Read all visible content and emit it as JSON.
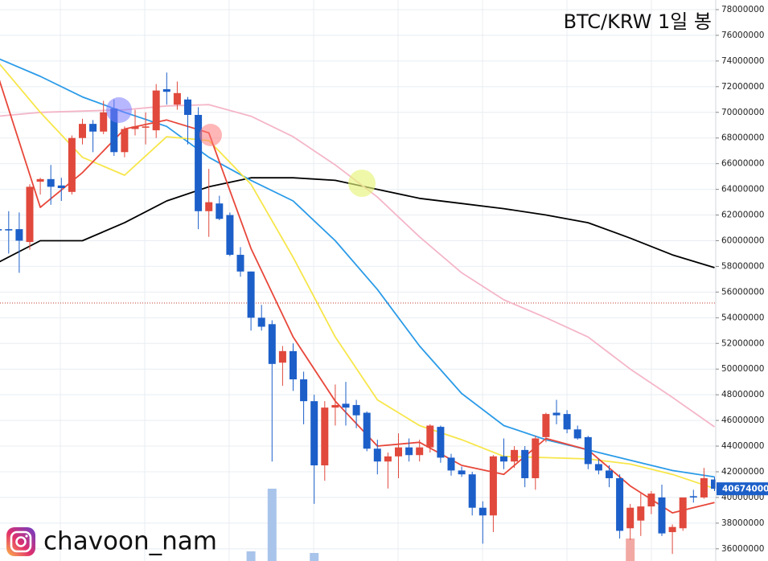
{
  "chart_data": {
    "type": "candlestick",
    "title": "BTC/KRW 1일 봉",
    "watermark": "chavoon_nam",
    "ylim": [
      35050000,
      78750000
    ],
    "yticks": [
      36000000,
      38000000,
      40000000,
      42000000,
      44000000,
      46000000,
      48000000,
      50000000,
      52000000,
      54000000,
      56000000,
      58000000,
      60000000,
      62000000,
      64000000,
      66000000,
      68000000,
      70000000,
      72000000,
      74000000,
      76000000,
      78000000
    ],
    "grid": true,
    "up_color": "#e0493c",
    "down_color": "#1c5fc9",
    "current_price": 40674000,
    "reference_line": 55150000,
    "open": [
      60900000.0,
      60900000.0,
      60900000.0,
      59900000.0,
      64600000.0,
      64800000.0,
      64300000.0,
      63800000.0,
      68000000.0,
      69100000.0,
      68500000.0,
      70300000.0,
      66900000.0,
      68700000.0,
      68800000.0,
      68600000.0,
      71800000.0,
      70600000.0,
      71000000.0,
      69800000.0,
      62300000.0,
      62900000.0,
      62000000.0,
      58900000.0,
      57600000.0,
      54000000.0,
      53500000.0,
      50500000.0,
      51400000.0,
      49200000.0,
      47500000.0,
      42500000.0,
      47000000.0,
      47300000.0,
      47200000.0,
      46600000.0,
      43800000.0,
      42800000.0,
      43200000.0,
      43900000.0,
      43300000.0,
      43900000.0,
      45500000.0,
      43100000.0,
      42100000.0,
      41800000.0,
      39200000.0,
      38600000.0,
      43200000.0,
      42800000.0,
      43700000.0,
      41500000.0,
      44700000.0,
      46600000.0,
      46500000.0,
      45300000.0,
      44700000.0,
      42600000.0,
      42100000.0,
      41500000.0,
      37600000.0,
      38200000.0,
      39300000.0,
      40000000.0,
      37300000.0,
      37600000.0,
      40100000.0,
      40000000.0,
      41400000.0
    ],
    "high": [
      62000000.0,
      62300000.0,
      62200000.0,
      64400000.0,
      64900000.0,
      65900000.0,
      64900000.0,
      68200000.0,
      69500000.0,
      69400000.0,
      70900000.0,
      71000000.0,
      68900000.0,
      70200000.0,
      70000000.0,
      72200000.0,
      73100000.0,
      72400000.0,
      71200000.0,
      70400000.0,
      65600000.0,
      63500000.0,
      62200000.0,
      59500000.0,
      57600000.0,
      55000000.0,
      53800000.0,
      51800000.0,
      52000000.0,
      49800000.0,
      48000000.0,
      47500000.0,
      48800000.0,
      49000000.0,
      47600000.0,
      46700000.0,
      44500000.0,
      43500000.0,
      45000000.0,
      44600000.0,
      44500000.0,
      45700000.0,
      45600000.0,
      43400000.0,
      42400000.0,
      42000000.0,
      39700000.0,
      43300000.0,
      44600000.0,
      44000000.0,
      44000000.0,
      44800000.0,
      46600000.0,
      47600000.0,
      46800000.0,
      45600000.0,
      44800000.0,
      43000000.0,
      42500000.0,
      41800000.0,
      39500000.0,
      40300000.0,
      40500000.0,
      41000000.0,
      37900000.0,
      40000000.0,
      40600000.0,
      42300000.0,
      41600000.0
    ],
    "low": [
      59000000.0,
      59000000.0,
      57500000.0,
      59300000.0,
      63600000.0,
      62800000.0,
      63100000.0,
      63600000.0,
      67500000.0,
      66900000.0,
      68300000.0,
      66600000.0,
      66500000.0,
      68200000.0,
      67500000.0,
      68000000.0,
      70600000.0,
      70200000.0,
      67500000.0,
      60900000.0,
      60300000.0,
      61600000.0,
      58800000.0,
      57200000.0,
      53000000.0,
      53000000.0,
      42800000.0,
      48700000.0,
      48300000.0,
      45700000.0,
      39500000.0,
      41300000.0,
      45600000.0,
      45600000.0,
      45400000.0,
      43600000.0,
      41800000.0,
      40700000.0,
      41500000.0,
      42800000.0,
      42800000.0,
      43500000.0,
      42700000.0,
      41700000.0,
      41600000.0,
      38600000.0,
      36400000.0,
      37300000.0,
      42200000.0,
      42300000.0,
      40800000.0,
      40600000.0,
      44300000.0,
      45700000.0,
      45000000.0,
      44500000.0,
      42200000.0,
      41800000.0,
      40800000.0,
      36800000.0,
      36700000.0,
      37000000.0,
      38700000.0,
      37000000.0,
      35600000.0,
      37400000.0,
      39600000.0,
      39900000.0,
      40500000.0
    ],
    "close": [
      60800000.0,
      60800000.0,
      60000000.0,
      64200000.0,
      64800000.0,
      64200000.0,
      64100000.0,
      68000000.0,
      69100000.0,
      68500000.0,
      70000000.0,
      66900000.0,
      68700000.0,
      68900000.0,
      68900000.0,
      71700000.0,
      71600000.0,
      71500000.0,
      69800000.0,
      62300000.0,
      63000000.0,
      61700000.0,
      58900000.0,
      57600000.0,
      54000000.0,
      53300000.0,
      50400000.0,
      51400000.0,
      49200000.0,
      47500000.0,
      42500000.0,
      47000000.0,
      47200000.0,
      47000000.0,
      46400000.0,
      43800000.0,
      42800000.0,
      43200000.0,
      43900000.0,
      43300000.0,
      43900000.0,
      45600000.0,
      43100000.0,
      42100000.0,
      41800000.0,
      39200000.0,
      38600000.0,
      43200000.0,
      42800000.0,
      43700000.0,
      41500000.0,
      44600000.0,
      46500000.0,
      46400000.0,
      45300000.0,
      44600000.0,
      42600000.0,
      42100000.0,
      41500000.0,
      37400000.0,
      39200000.0,
      39300000.0,
      40300000.0,
      37200000.0,
      37700000.0,
      40000000.0,
      40000000.0,
      41500000.0,
      40674000.0
    ],
    "volume": {
      "x": [
        24,
        26,
        30,
        60
      ],
      "values": [
        12,
        90,
        10,
        28
      ],
      "vlim": [
        0,
        100
      ]
    },
    "ma_x": [
      0,
      4,
      8,
      12,
      16,
      20,
      24,
      28,
      32,
      36,
      40,
      44,
      48,
      52,
      56,
      60,
      64,
      68
    ],
    "series": [
      {
        "color": "#000000",
        "values": [
          58300000.0,
          60000000.0,
          60000000.0,
          61400000.0,
          63100000.0,
          64200000.0,
          64900000.0,
          64900000.0,
          64700000.0,
          64000000.0,
          63300000.0,
          62900000.0,
          62500000.0,
          62000000.0,
          61400000.0,
          60200000.0,
          58900000.0,
          57900000.0
        ]
      },
      {
        "color": "#f4b6c8",
        "values": [
          69700000.0,
          70000000.0,
          70100000.0,
          70200000.0,
          70500000.0,
          70600000.0,
          69700000.0,
          68100000.0,
          65900000.0,
          63400000.0,
          60300000.0,
          57500000.0,
          55400000.0,
          54000000.0,
          52500000.0,
          50000000.0,
          47800000.0,
          45500000.0
        ]
      },
      {
        "color": "#2b9be8",
        "values": [
          74200000.0,
          72800000.0,
          71200000.0,
          70000000.0,
          68900000.0,
          66500000.0,
          64700000.0,
          63100000.0,
          60000000.0,
          56200000.0,
          51800000.0,
          48100000.0,
          45600000.0,
          44500000.0,
          43700000.0,
          42900000.0,
          42100000.0,
          41600000.0
        ]
      },
      {
        "color": "#f7e64a",
        "values": [
          73900000.0,
          70000000.0,
          66500000.0,
          65100000.0,
          68100000.0,
          67800000.0,
          64400000.0,
          58700000.0,
          52500000.0,
          47600000.0,
          45600000.0,
          44500000.0,
          43200000.0,
          43100000.0,
          43000000.0,
          42600000.0,
          41800000.0,
          40700000.0
        ]
      },
      {
        "color": "#e8473a",
        "values": [
          72800000.0,
          62600000.0,
          65300000.0,
          68700000.0,
          69400000.0,
          68400000.0,
          59400000.0,
          52500000.0,
          47500000.0,
          44000000.0,
          44300000.0,
          42500000.0,
          41800000.0,
          44600000.0,
          43700000.0,
          40900000.0,
          38800000.0,
          39600000.0
        ]
      }
    ]
  }
}
